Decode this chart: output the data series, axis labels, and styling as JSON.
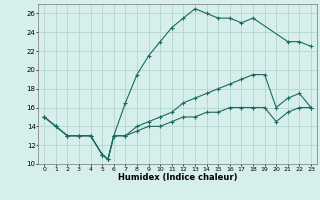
{
  "title": "",
  "xlabel": "Humidex (Indice chaleur)",
  "background_color": "#d6efec",
  "grid_color": "#b8d8d4",
  "line_color": "#1a6b5a",
  "xlim": [
    -0.5,
    23.5
  ],
  "ylim": [
    10,
    27
  ],
  "yticks": [
    10,
    12,
    14,
    16,
    18,
    20,
    22,
    24,
    26
  ],
  "xticks": [
    0,
    1,
    2,
    3,
    4,
    5,
    6,
    7,
    8,
    9,
    10,
    11,
    12,
    13,
    14,
    15,
    16,
    17,
    18,
    19,
    20,
    21,
    22,
    23
  ],
  "series": [
    {
      "x": [
        0,
        1,
        2,
        3,
        4,
        5,
        5.5,
        6,
        7,
        8,
        9,
        10,
        11,
        12,
        13,
        14,
        15,
        16,
        17,
        18,
        21,
        22,
        23
      ],
      "y": [
        15,
        14,
        13,
        13,
        13,
        11,
        10.5,
        13,
        16.5,
        19.5,
        21.5,
        23,
        24.5,
        25.5,
        26.5,
        26,
        25.5,
        25.5,
        25,
        25.5,
        23,
        23,
        22.5
      ]
    },
    {
      "x": [
        0,
        1,
        2,
        3,
        4,
        5,
        5.5,
        6,
        7,
        8,
        9,
        10,
        11,
        12,
        13,
        14,
        15,
        16,
        17,
        18,
        19,
        20,
        21,
        22,
        23
      ],
      "y": [
        15,
        14,
        13,
        13,
        13,
        11,
        10.5,
        13,
        13,
        14,
        14.5,
        15,
        15.5,
        16.5,
        17,
        17.5,
        18,
        18.5,
        19,
        19.5,
        19.5,
        16,
        17,
        17.5,
        16
      ]
    },
    {
      "x": [
        0,
        1,
        2,
        3,
        4,
        5,
        5.5,
        6,
        7,
        8,
        9,
        10,
        11,
        12,
        13,
        14,
        15,
        16,
        17,
        18,
        19,
        20,
        21,
        22,
        23
      ],
      "y": [
        15,
        14,
        13,
        13,
        13,
        11,
        10.5,
        13,
        13,
        13.5,
        14,
        14,
        14.5,
        15,
        15,
        15.5,
        15.5,
        16,
        16,
        16,
        16,
        14.5,
        15.5,
        16,
        16
      ]
    }
  ]
}
